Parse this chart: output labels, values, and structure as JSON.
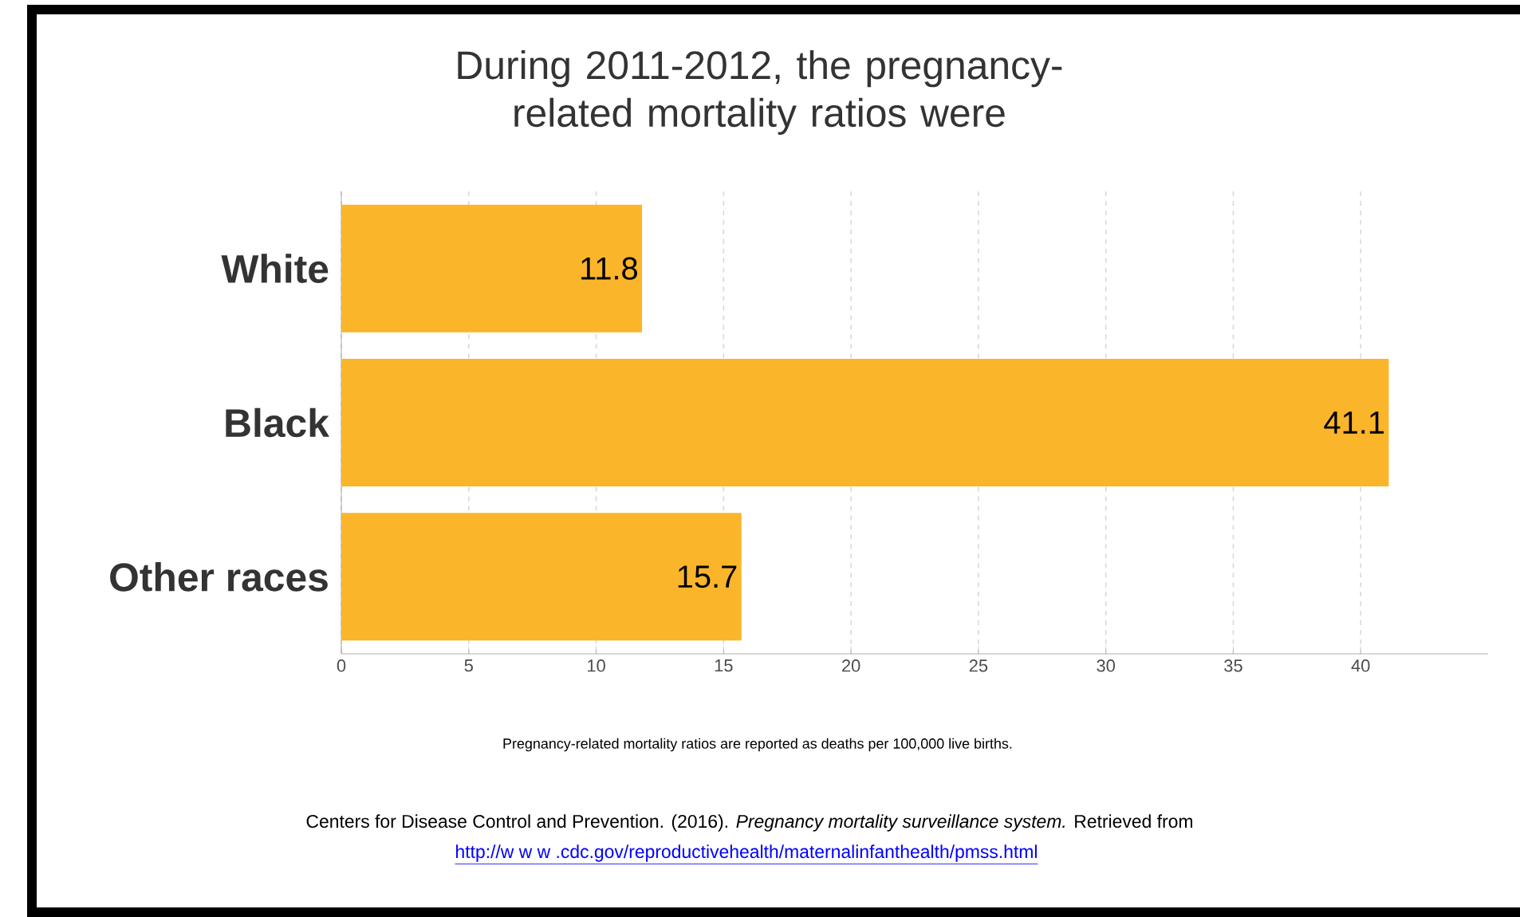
{
  "chart_data": {
    "type": "bar",
    "orientation": "horizontal",
    "title": "During 2011-2012, the pregnancy-related mortality ratios were",
    "categories": [
      "White",
      "Black",
      "Other races"
    ],
    "values": [
      11.8,
      41.1,
      15.7
    ],
    "color": "#fbb52a",
    "xlim": [
      0,
      45
    ],
    "xticks": [
      0,
      5,
      10,
      15,
      20,
      25,
      30,
      35,
      40
    ],
    "grid": "x",
    "data_labels": true,
    "annotations": [
      "Pregnancy-related mortality ratios are reported as deaths per 100,000 live births.",
      "Centers for Disease Control and Prevention. (2016). *Pregnancy mortality surveillance system.* Retrieved from",
      "http://w w w .cdc.gov/reproductivehealth/maternalinfanthealth/pmss.html"
    ]
  }
}
